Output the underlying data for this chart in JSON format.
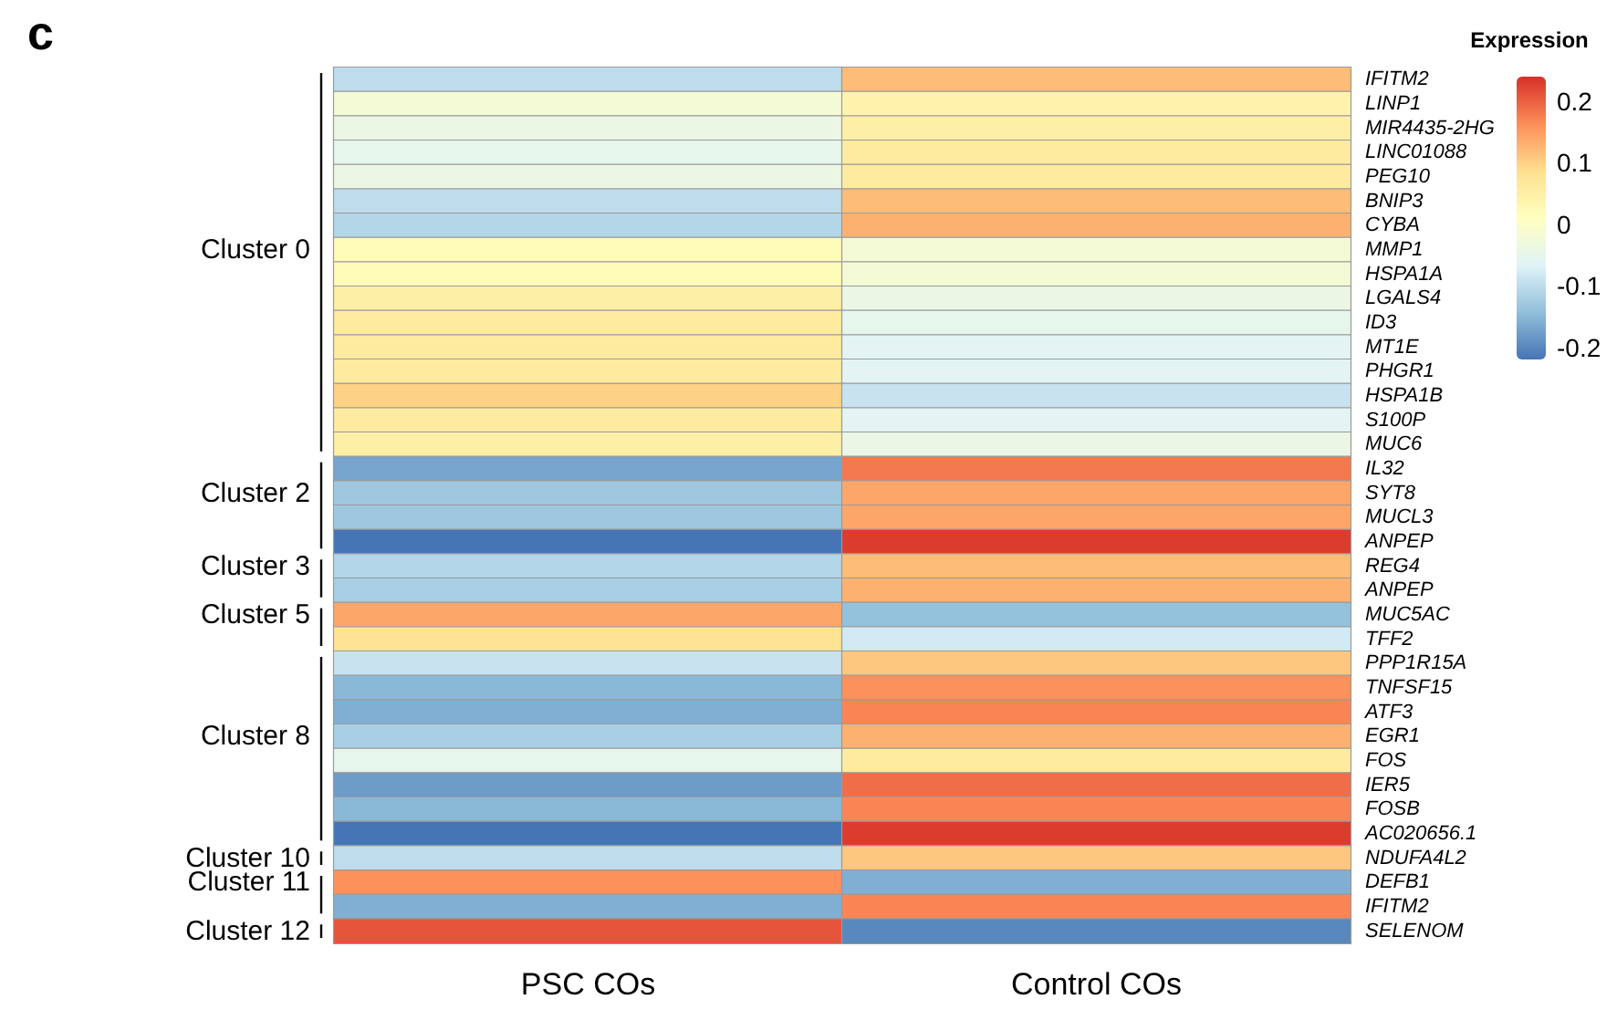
{
  "chart_data": {
    "type": "heatmap",
    "title": "c",
    "legend_title": "Expression",
    "categories": [
      "PSC COs",
      "Control COs"
    ],
    "y_categories": [
      null,
      null,
      null,
      null,
      null,
      null,
      null,
      "Cluster 0",
      null,
      null,
      null,
      null,
      null,
      null,
      null,
      null,
      null,
      "Cluster 2",
      null,
      null,
      "Cluster 3",
      null,
      "Cluster 5",
      null,
      null,
      null,
      null,
      "Cluster 8",
      null,
      null,
      null,
      null,
      "Cluster 10",
      "Cluster 11",
      null,
      "Cluster 12"
    ],
    "y2_categories": [
      "IFITM2",
      "LINP1",
      "MIR4435-2HG",
      "LINC01088",
      "PEG10",
      "BNIP3",
      "CYBA",
      "MMP1",
      "HSPA1A",
      "LGALS4",
      "ID3",
      "MT1E",
      "PHGR1",
      "HSPA1B",
      "S100P",
      "MUC6",
      "IL32",
      "SYT8",
      "MUCL3",
      "ANPEP",
      "REG4",
      "ANPEP",
      "MUC5AC",
      "TFF2",
      "PPP1R15A",
      "TNFSF15",
      "ATF3",
      "EGR1",
      "FOS",
      "IER5",
      "FOSB",
      "AC020656.1",
      "NDUFA4L2",
      "DEFB1",
      "IFITM2",
      "SELENOM"
    ],
    "cells": [
      [
        -0.1,
        0.12
      ],
      [
        -0.02,
        0.04
      ],
      [
        -0.04,
        0.05
      ],
      [
        -0.05,
        0.06
      ],
      [
        -0.04,
        0.06
      ],
      [
        -0.1,
        0.12
      ],
      [
        -0.11,
        0.13
      ],
      [
        0.02,
        -0.02
      ],
      [
        0.02,
        -0.02
      ],
      [
        0.05,
        -0.04
      ],
      [
        0.06,
        -0.05
      ],
      [
        0.06,
        -0.06
      ],
      [
        0.06,
        -0.06
      ],
      [
        0.1,
        -0.09
      ],
      [
        0.06,
        -0.06
      ],
      [
        0.05,
        -0.04
      ],
      [
        -0.17,
        0.18
      ],
      [
        -0.13,
        0.14
      ],
      [
        -0.13,
        0.14
      ],
      [
        -0.22,
        0.23
      ],
      [
        -0.11,
        0.12
      ],
      [
        -0.12,
        0.13
      ],
      [
        0.14,
        -0.14
      ],
      [
        0.08,
        -0.08
      ],
      [
        -0.09,
        0.11
      ],
      [
        -0.15,
        0.16
      ],
      [
        -0.16,
        0.17
      ],
      [
        -0.12,
        0.13
      ],
      [
        -0.05,
        0.06
      ],
      [
        -0.18,
        0.19
      ],
      [
        -0.15,
        0.17
      ],
      [
        -0.22,
        0.23
      ],
      [
        -0.1,
        0.11
      ],
      [
        0.16,
        -0.16
      ],
      [
        -0.16,
        0.17
      ],
      [
        0.21,
        -0.2
      ]
    ],
    "clim": [
      -0.22,
      0.24
    ],
    "cticks": [
      -0.2,
      -0.1,
      0,
      0.1,
      0.2
    ]
  }
}
